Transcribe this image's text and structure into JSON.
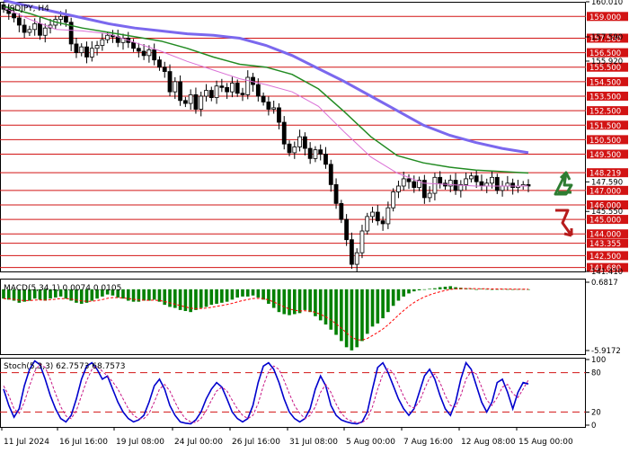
{
  "chart_data": [
    {
      "type": "candlestick",
      "title": "USDJPY, H4",
      "ylim": [
        141.41,
        160.01
      ],
      "y_axis_ticks": [
        "160.010",
        "157.590",
        "155.920",
        "147.590",
        "145.550",
        "141.410"
      ],
      "support_resistance_levels": [
        {
          "value": 159.0,
          "label": "159.000"
        },
        {
          "value": 157.5,
          "label": "157.500"
        },
        {
          "value": 156.5,
          "label": "156.500"
        },
        {
          "value": 155.5,
          "label": "155.500"
        },
        {
          "value": 154.5,
          "label": "154.500"
        },
        {
          "value": 153.5,
          "label": "153.500"
        },
        {
          "value": 152.5,
          "label": "152.500"
        },
        {
          "value": 151.5,
          "label": "151.500"
        },
        {
          "value": 150.5,
          "label": "150.500"
        },
        {
          "value": 149.5,
          "label": "149.500"
        },
        {
          "value": 148.219,
          "label": "148.219"
        },
        {
          "value": 147.0,
          "label": "147.000"
        },
        {
          "value": 146.0,
          "label": "146.000"
        },
        {
          "value": 145.0,
          "label": "145.000"
        },
        {
          "value": 144.0,
          "label": "144.000"
        },
        {
          "value": 143.355,
          "label": "143.355"
        },
        {
          "value": 142.5,
          "label": "142.500"
        },
        {
          "value": 141.68,
          "label": "141.680"
        }
      ],
      "candles_close": [
        159.5,
        159.2,
        158.9,
        158.4,
        157.9,
        158.1,
        158.5,
        157.7,
        158.2,
        158.4,
        158.8,
        159.0,
        158.6,
        157.1,
        156.5,
        156.9,
        156.2,
        156.8,
        157.0,
        157.4,
        157.7,
        157.6,
        157.2,
        157.5,
        157.2,
        156.8,
        156.6,
        156.3,
        156.7,
        156.0,
        155.5,
        155.2,
        153.8,
        154.5,
        153.2,
        153.0,
        153.6,
        152.6,
        153.5,
        153.9,
        153.4,
        154.2,
        154.1,
        153.8,
        154.4,
        153.7,
        153.6,
        154.8,
        154.3,
        153.5,
        153.1,
        152.6,
        152.7,
        151.7,
        150.2,
        149.6,
        150.0,
        150.7,
        149.9,
        149.2,
        149.8,
        149.5,
        148.8,
        147.4,
        146.1,
        145.0,
        143.6,
        141.9,
        142.7,
        144.2,
        145.2,
        145.5,
        144.9,
        144.7,
        145.8,
        146.9,
        147.3,
        147.8,
        147.6,
        147.2,
        147.7,
        146.5,
        146.8,
        147.9,
        147.5,
        147.3,
        147.7,
        147.0,
        147.4,
        147.8,
        148.0,
        147.6,
        147.3,
        147.5,
        147.9,
        147.0,
        147.3,
        147.5,
        147.2,
        147.3,
        147.4,
        147.3
      ],
      "series": [
        {
          "color": "#7b68ee",
          "values": [
            160.1,
            159.7,
            159.3,
            158.9,
            158.5,
            158.2,
            158.0,
            157.8,
            157.7,
            157.5,
            157.0,
            156.3,
            155.4,
            154.5,
            153.5,
            152.5,
            151.5,
            150.8,
            150.3,
            149.9,
            149.6
          ]
        },
        {
          "color": "#228b22",
          "values": [
            159.7,
            159.2,
            158.6,
            158.2,
            157.9,
            157.6,
            157.3,
            156.8,
            156.2,
            155.7,
            155.5,
            155.0,
            154.0,
            152.4,
            150.7,
            149.4,
            148.9,
            148.6,
            148.4,
            148.3,
            148.2
          ]
        },
        {
          "color": "#da70d6",
          "values": [
            159.6,
            158.8,
            158.1,
            158.0,
            157.8,
            157.2,
            156.6,
            155.9,
            155.3,
            154.7,
            154.3,
            153.8,
            152.8,
            151.0,
            149.3,
            148.2,
            147.5,
            147.4,
            147.3,
            147.3,
            147.3
          ]
        }
      ]
    },
    {
      "type": "histogram",
      "title": "MACD(5,34,1) 0.0074 0.0105",
      "y_axis_ticks": [
        "0.6817",
        "-5.9172"
      ],
      "ylim": [
        -5.9172,
        0.6817
      ],
      "values": [
        -0.9,
        -1.0,
        -1.1,
        -1.3,
        -1.2,
        -1.1,
        -0.9,
        -1.0,
        -1.1,
        -0.9,
        -0.8,
        -0.7,
        -0.9,
        -1.1,
        -1.3,
        -1.4,
        -1.3,
        -1.1,
        -0.9,
        -0.7,
        -0.5,
        -0.6,
        -0.8,
        -0.9,
        -1.1,
        -1.2,
        -1.2,
        -1.1,
        -1.1,
        -1.0,
        -1.2,
        -1.5,
        -1.7,
        -1.8,
        -2.0,
        -2.1,
        -2.2,
        -2.0,
        -1.8,
        -1.7,
        -1.5,
        -1.4,
        -1.3,
        -1.2,
        -1.0,
        -0.8,
        -0.7,
        -0.7,
        -0.6,
        -0.8,
        -1.0,
        -1.4,
        -1.8,
        -2.2,
        -2.4,
        -2.5,
        -2.4,
        -2.3,
        -2.0,
        -2.2,
        -2.6,
        -3.0,
        -3.4,
        -3.9,
        -4.4,
        -5.0,
        -5.6,
        -5.9,
        -5.6,
        -5.0,
        -4.3,
        -3.6,
        -3.3,
        -2.8,
        -2.2,
        -1.6,
        -1.1,
        -0.7,
        -0.4,
        -0.2,
        -0.1,
        0.0,
        0.05,
        0.1,
        0.2,
        0.25,
        0.3,
        0.2,
        0.15,
        0.1,
        0.05,
        0.0,
        0.05,
        0.02,
        0.0,
        0.01,
        0.02,
        0.01,
        0.0,
        0.01,
        0.01,
        0.0
      ],
      "series": [
        {
          "color": "#008000"
        },
        {
          "color": "#ff0000"
        }
      ]
    },
    {
      "type": "line",
      "title": "Stoch(5,3,3) 62.7573 68.7573",
      "ylim": [
        0,
        100
      ],
      "y_axis_ticks": [
        "100",
        "80",
        "20",
        "0"
      ],
      "reference_lines": [
        80,
        20
      ],
      "series": [
        {
          "color": "#0000cd",
          "values": [
            55,
            30,
            12,
            25,
            60,
            85,
            98,
            92,
            70,
            45,
            25,
            10,
            5,
            15,
            40,
            70,
            90,
            95,
            85,
            70,
            75,
            55,
            35,
            20,
            10,
            5,
            8,
            15,
            35,
            60,
            70,
            55,
            30,
            15,
            5,
            3,
            2,
            8,
            20,
            40,
            55,
            65,
            58,
            40,
            20,
            10,
            5,
            10,
            30,
            65,
            90,
            95,
            85,
            65,
            40,
            20,
            10,
            5,
            10,
            25,
            55,
            75,
            60,
            30,
            15,
            8,
            5,
            3,
            2,
            5,
            20,
            55,
            88,
            95,
            80,
            60,
            40,
            25,
            15,
            25,
            50,
            75,
            85,
            70,
            45,
            25,
            15,
            35,
            70,
            95,
            85,
            60,
            35,
            20,
            35,
            65,
            70,
            50,
            25,
            50,
            65,
            62.8
          ]
        },
        {
          "color": "#c71585",
          "values": [
            60,
            45,
            25,
            18,
            35,
            60,
            82,
            93,
            88,
            70,
            48,
            28,
            14,
            10,
            22,
            45,
            68,
            85,
            90,
            82,
            75,
            66,
            55,
            40,
            25,
            15,
            10,
            10,
            18,
            35,
            55,
            62,
            52,
            35,
            20,
            10,
            5,
            4,
            10,
            22,
            38,
            52,
            58,
            52,
            38,
            25,
            15,
            10,
            15,
            33,
            60,
            82,
            90,
            85,
            68,
            48,
            30,
            18,
            10,
            15,
            28,
            50,
            62,
            50,
            32,
            18,
            10,
            6,
            4,
            4,
            10,
            28,
            55,
            78,
            86,
            80,
            62,
            44,
            30,
            26,
            35,
            55,
            72,
            78,
            65,
            45,
            30,
            28,
            45,
            70,
            82,
            78,
            58,
            38,
            30,
            42,
            58,
            62,
            48,
            42,
            55,
            68.8
          ]
        }
      ]
    }
  ],
  "x_axis_labels": [
    "11 Jul 2024",
    "16 Jul 16:00",
    "19 Jul 08:00",
    "24 Jul 00:00",
    "26 Jul 16:00",
    "31 Jul 08:00",
    "5 Aug 00:00",
    "7 Aug 16:00",
    "12 Aug 08:00",
    "15 Aug 00:00"
  ],
  "colors": {
    "level_line": "#d21414",
    "bull_candle": "#ffffff",
    "bear_candle": "#000000",
    "up_arrow": "#2e7d32",
    "down_arrow": "#b71c1c",
    "current_price_box": "#d21414"
  },
  "markers": [
    "up-arrow-icon",
    "down-arrow-icon"
  ]
}
